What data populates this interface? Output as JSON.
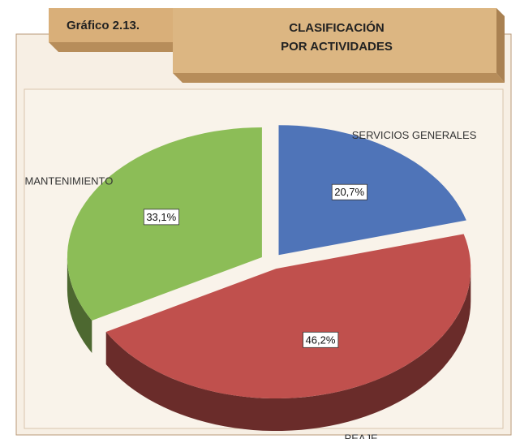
{
  "chart_data": {
    "type": "pie",
    "figure_label": "Gráfico 2.13.",
    "title": [
      "CLASIFICACIÓN",
      "POR ACTIVIDADES"
    ],
    "categories": [
      "SERVICIOS GENERALES",
      "PEAJE",
      "MANTENIMIENTO"
    ],
    "values": [
      20.7,
      46.2,
      33.1
    ],
    "value_labels": [
      "20,7%",
      "46,2%",
      "33,1%"
    ],
    "colors": [
      "#4f74b8",
      "#c0504d",
      "#8cbd57"
    ]
  }
}
